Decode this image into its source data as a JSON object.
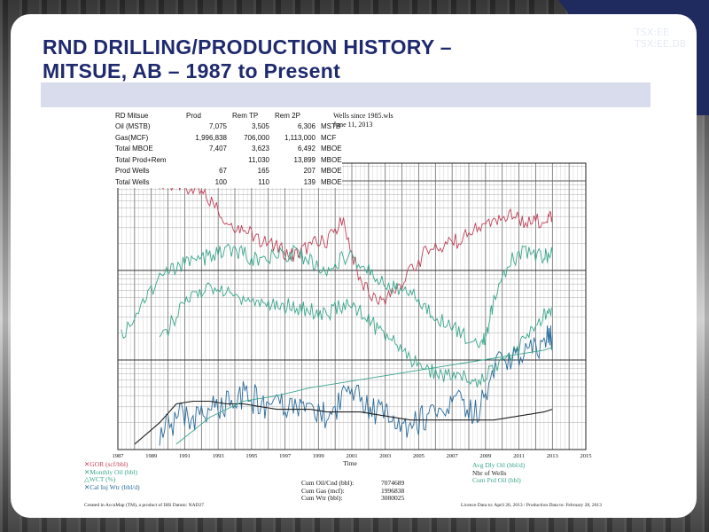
{
  "slide": {
    "title_line1": "RND DRILLING/PRODUCTION HISTORY –",
    "title_line2": "MITSUE, AB – 1987 to Present",
    "ticker_1": "TSX:EE",
    "ticker_2": "TSX:EE.DB"
  },
  "summary_table": {
    "header": [
      "RD Mitsue",
      "Prod",
      "Rem TP",
      "Rem 2P",
      ""
    ],
    "rows": [
      [
        "Oil (MSTB)",
        "7,075",
        "3,505",
        "6,306",
        "MSTB"
      ],
      [
        "Gas(MCF)",
        "1,996,838",
        "706,000",
        "1,113,000",
        "MCF"
      ],
      [
        "Total MBOE",
        "7,407",
        "3,623",
        "6,492",
        "MBOE"
      ],
      [
        "Total Prod+Rem",
        "",
        "11,030",
        "13,899",
        "MBOE"
      ],
      [
        "Prod Wells",
        "67",
        "165",
        "207",
        "MBOE"
      ],
      [
        "Total Wells",
        "100",
        "110",
        "139",
        "MBOE"
      ]
    ]
  },
  "wells_info": {
    "file": "Wells since 1985.wls",
    "date": "June 11, 2013"
  },
  "chart_data": {
    "type": "line",
    "xlabel": "Time",
    "x_ticks": [
      "1987",
      "1989",
      "1991",
      "1993",
      "1995",
      "1997",
      "1999",
      "2001",
      "2003",
      "2005",
      "2007",
      "2009",
      "2011",
      "2013",
      "2015"
    ],
    "xlim": [
      1987,
      2015
    ],
    "y_scale": "log",
    "series": [
      {
        "name": "GOR (scf/bbl)",
        "color": "#c0435a",
        "x": [
          1989.5,
          1990.5,
          1991.5,
          1992.5,
          1993.5,
          1994.5,
          1995.5,
          1996.5,
          1997.5,
          1998.5,
          1999.5,
          2000.5,
          2001.5,
          2002.5,
          2003.5,
          2004.5,
          2005.5,
          2006.5,
          2007.5,
          2008.5,
          2009.5,
          2010.5,
          2011.5,
          2012.5,
          2013.0
        ],
        "y": [
          1.0,
          0.98,
          0.97,
          0.93,
          0.85,
          0.82,
          0.78,
          0.75,
          0.72,
          0.76,
          0.78,
          0.85,
          0.62,
          0.55,
          0.58,
          0.66,
          0.74,
          0.76,
          0.78,
          0.82,
          0.84,
          0.88,
          0.84,
          0.86,
          0.87
        ]
      },
      {
        "name": "Monthly Oil (bbl)",
        "color": "#3aa68c",
        "x": [
          1987.2,
          1988.5,
          1989.5,
          1990.5,
          1991.5,
          1992.5,
          1993.5,
          1994.5,
          1995.5,
          1996.5,
          1997.5,
          1998.5,
          1999.5,
          2000.5,
          2001.5,
          2002.5,
          2003.5,
          2004.5,
          2005.5,
          2006.5,
          2007.5,
          2008.5,
          2009.0,
          2009.5,
          2010.5,
          2011.5,
          2012.5,
          2013.0
        ],
        "y": [
          0.42,
          0.55,
          0.64,
          0.68,
          0.7,
          0.72,
          0.74,
          0.73,
          0.7,
          0.72,
          0.73,
          0.7,
          0.66,
          0.72,
          0.7,
          0.64,
          0.6,
          0.58,
          0.52,
          0.48,
          0.44,
          0.38,
          0.42,
          0.55,
          0.7,
          0.74,
          0.72,
          0.73
        ]
      },
      {
        "name": "WCT (%)",
        "color": "#3aa68c",
        "x": [
          1989.5,
          1990.5,
          1991.5,
          1992.5,
          1993.5,
          1994.5,
          1995.5,
          1996.5,
          1997.5,
          1998.5,
          1999.5,
          2000.5,
          2001.5,
          2002.5,
          2003.5,
          2004.5,
          2005.5,
          2006.5,
          2007.5,
          2008.5,
          2009.5,
          2010.5,
          2011.5,
          2012.5,
          2013.0
        ],
        "y": [
          0.4,
          0.5,
          0.58,
          0.6,
          0.58,
          0.56,
          0.55,
          0.54,
          0.53,
          0.52,
          0.5,
          0.54,
          0.52,
          0.45,
          0.4,
          0.34,
          0.3,
          0.28,
          0.27,
          0.26,
          0.3,
          0.35,
          0.42,
          0.5,
          0.53
        ]
      },
      {
        "name": "Cal Inj Wtr (bbl/d)",
        "color": "#2a6b9a",
        "x": [
          1989.5,
          1990.5,
          1991.5,
          1992.5,
          1993.5,
          1994.5,
          1995.5,
          1996.5,
          1997.5,
          1998.5,
          1999.5,
          2000.5,
          2001.5,
          2002.5,
          2003.5,
          2004.5,
          2005.5,
          2006.5,
          2007.5,
          2008.5,
          2009.5,
          2010.5,
          2011.5,
          2012.5,
          2013.0
        ],
        "y": [
          0.05,
          0.12,
          0.1,
          0.14,
          0.16,
          0.2,
          0.18,
          0.15,
          0.16,
          0.14,
          0.12,
          0.2,
          0.18,
          0.14,
          0.12,
          0.1,
          0.12,
          0.12,
          0.18,
          0.14,
          0.3,
          0.35,
          0.38,
          0.4,
          0.42
        ]
      },
      {
        "name": "Nbr of Wells",
        "color": "#222222",
        "x": [
          1988.0,
          1989.5,
          1990.5,
          1991.5,
          1992.5,
          1993.5,
          1994.5,
          1995.5,
          1996.5,
          1997.5,
          1998.5,
          1999.5,
          2000.5,
          2001.5,
          2002.5,
          2003.5,
          2004.5,
          2005.5,
          2006.5,
          2007.5,
          2008.5,
          2009.5,
          2010.5,
          2011.5,
          2012.5,
          2013.0
        ],
        "y": [
          0.02,
          0.1,
          0.17,
          0.18,
          0.18,
          0.17,
          0.17,
          0.16,
          0.15,
          0.15,
          0.15,
          0.14,
          0.14,
          0.14,
          0.13,
          0.12,
          0.11,
          0.11,
          0.11,
          0.11,
          0.11,
          0.11,
          0.12,
          0.13,
          0.14,
          0.15
        ]
      },
      {
        "name": "Cum Prd Oil (bbl)",
        "color": "#3aa68c",
        "x": [
          1990.5,
          1992.5,
          1994.5,
          1996.5,
          1998.5,
          2000.5,
          2002.5,
          2004.5,
          2006.5,
          2008.5,
          2010.5,
          2012.5,
          2013.0
        ],
        "y": [
          0.02,
          0.12,
          0.18,
          0.2,
          0.23,
          0.25,
          0.27,
          0.29,
          0.31,
          0.33,
          0.35,
          0.37,
          0.38
        ]
      }
    ]
  },
  "legend": {
    "left": [
      "GOR (scf/bbl)",
      "Monthly Oil (bbl)",
      "WCT (%)",
      "Cal Inj Wtr (bbl/d)"
    ],
    "right": [
      "Avg Dly Oil (bbl/d)",
      "Nbr of Wells",
      "Cum Prd Oil (bbl)"
    ]
  },
  "cumulative": {
    "rows": [
      {
        "label": "Cum Oil/Cnd (bbl):",
        "value": "7074689"
      },
      {
        "label": "Cum Gas (mcf):",
        "value": "1996838"
      },
      {
        "label": "Cum Wtr (bbl):",
        "value": "3080025"
      }
    ]
  },
  "footer": {
    "left": "Created in AccuMap (TM), a product of IHS Datum: NAD27",
    "right": "Licence Data to: April 26, 2013 / Production Data to: February 28, 2013"
  }
}
